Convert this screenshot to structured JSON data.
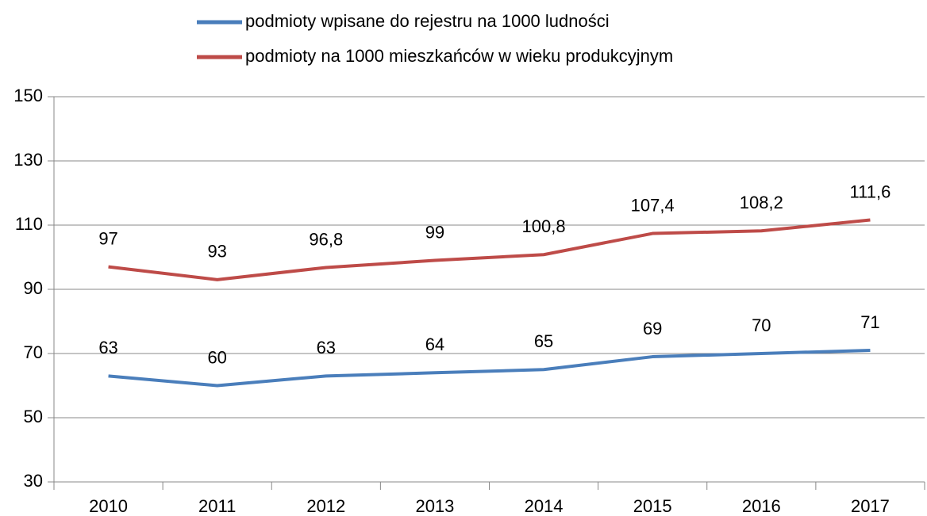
{
  "chart_data": {
    "type": "line",
    "categories": [
      "2010",
      "2011",
      "2012",
      "2013",
      "2014",
      "2015",
      "2016",
      "2017"
    ],
    "series": [
      {
        "name": "podmioty wpisane do rejestru na 1000 ludności",
        "color": "#4a7ebb",
        "values": [
          63,
          60,
          63,
          64,
          65,
          69,
          70,
          71
        ]
      },
      {
        "name": "podmioty na 1000 mieszkańców w wieku produkcyjnym",
        "color": "#be4b48",
        "values": [
          97,
          93,
          96.8,
          99,
          100.8,
          107.4,
          108.2,
          111.6
        ],
        "value_labels": [
          "97",
          "93",
          "96,8",
          "99",
          "100,8",
          "107,4",
          "108,2",
          "111,6"
        ]
      }
    ],
    "ylim": [
      30,
      150
    ],
    "yticks": [
      30,
      50,
      70,
      90,
      110,
      130,
      150
    ],
    "grid": true,
    "legend": "top"
  }
}
